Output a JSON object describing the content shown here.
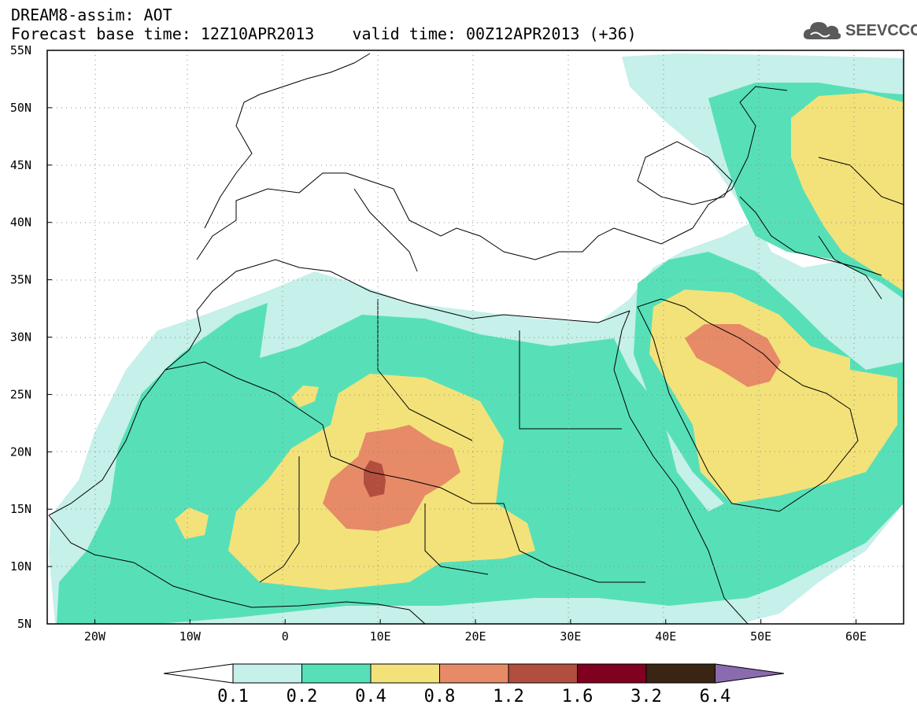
{
  "header": {
    "title": "DREAM8-assim: AOT",
    "forecast_label": "Forecast base time: 12Z10APR2013",
    "valid_label": "valid time: 00Z12APR2013 (+36)"
  },
  "logo": {
    "text": "SEEVCCC",
    "icon": "cloud-icon"
  },
  "map": {
    "lon_range": [
      -25,
      65
    ],
    "lat_range": [
      5,
      55
    ],
    "lat_ticks": [
      "5N",
      "10N",
      "15N",
      "20N",
      "25N",
      "30N",
      "35N",
      "40N",
      "45N",
      "50N",
      "55N"
    ],
    "lon_ticks": [
      "20W",
      "10W",
      "0",
      "10E",
      "20E",
      "30E",
      "40E",
      "50E",
      "60E"
    ],
    "grid": "dotted"
  },
  "colorbar": {
    "labels": [
      "0.1",
      "0.2",
      "0.4",
      "0.8",
      "1.2",
      "1.6",
      "3.2",
      "6.4"
    ],
    "colors": [
      "#ffffff",
      "#c6f0ea",
      "#57e0b8",
      "#f3e27a",
      "#e68a68",
      "#b24e3e",
      "#800020",
      "#3a2414",
      "#8b6bb0"
    ]
  }
}
